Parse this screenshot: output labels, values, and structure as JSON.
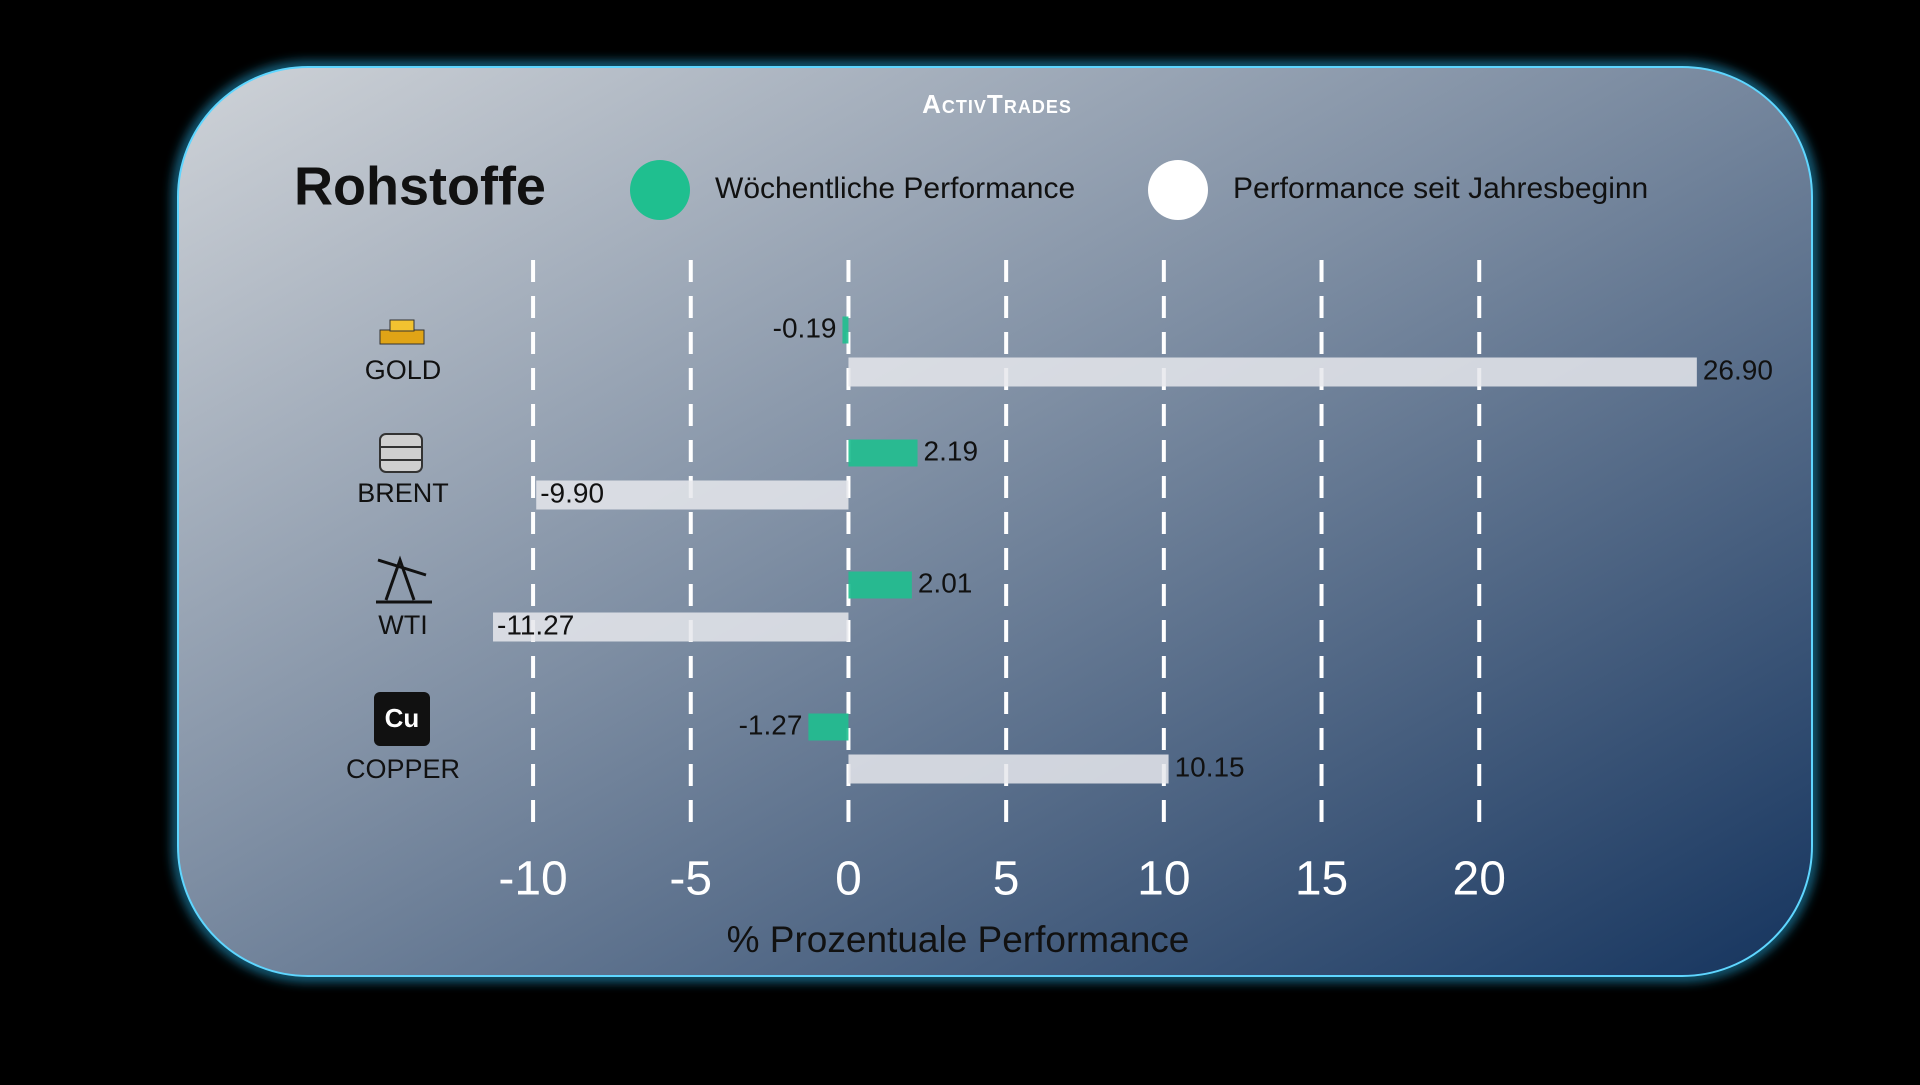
{
  "logo": "ActivTrades",
  "chart_data": {
    "type": "bar",
    "orientation": "horizontal",
    "title": "Rohstoffe",
    "x_label": "% Prozentuale Performance",
    "categories": [
      "GOLD",
      "BRENT",
      "WTI",
      "COPPER"
    ],
    "series": [
      {
        "name": "Wöchentliche Performance",
        "color": "#1fbf8f",
        "values": [
          -0.19,
          2.19,
          2.01,
          -1.27
        ],
        "value_labels": [
          "-0.19",
          "2.19",
          "2.01",
          "-1.27"
        ]
      },
      {
        "name": "Performance seit Jahresbeginn",
        "color": "#e6e8ec",
        "values": [
          26.9,
          -9.9,
          -11.27,
          10.15
        ],
        "value_labels": [
          "26.90",
          "-9.90",
          "-11.27",
          "10.15"
        ]
      }
    ],
    "xlim": [
      -12,
      27
    ],
    "xticks": [
      -10,
      -5,
      0,
      5,
      10,
      15,
      20
    ],
    "grid": true,
    "legend": "top"
  }
}
